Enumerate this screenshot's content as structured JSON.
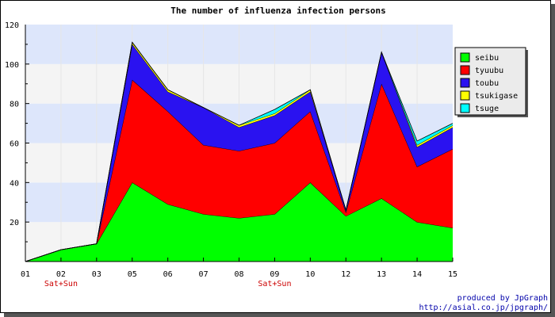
{
  "chart_data": {
    "type": "area",
    "stacked": true,
    "title": "The number of influenza infection persons",
    "categories": [
      "01",
      "02",
      "03",
      "05",
      "06",
      "07",
      "08",
      "09",
      "10",
      "12",
      "13",
      "14",
      "15"
    ],
    "weekend_notes": [
      {
        "category": "02",
        "text": "Sat+Sun"
      },
      {
        "category": "09",
        "text": "Sat+Sun"
      }
    ],
    "ylim": [
      0,
      120
    ],
    "yticks": [
      20,
      40,
      60,
      80,
      100,
      120
    ],
    "grid_bands": true,
    "legend_position": "right",
    "series": [
      {
        "name": "seibu",
        "color": "#00ff00",
        "values": [
          0,
          6,
          9,
          40,
          29,
          24,
          22,
          24,
          40,
          23,
          32,
          20,
          17
        ]
      },
      {
        "name": "tyuubu",
        "color": "#ff0000",
        "values": [
          0,
          0,
          0,
          52,
          47,
          35,
          34,
          36,
          36,
          2,
          58,
          28,
          40
        ]
      },
      {
        "name": "toubu",
        "color": "#2a12f0",
        "values": [
          0,
          0,
          0,
          18,
          10,
          19,
          12,
          14,
          10,
          1,
          16,
          10,
          11
        ]
      },
      {
        "name": "tsukigase",
        "color": "#ffff00",
        "values": [
          0,
          0,
          0,
          1,
          1,
          0,
          1,
          1,
          1,
          0,
          0,
          1,
          1
        ]
      },
      {
        "name": "tsuge",
        "color": "#00ffff",
        "values": [
          0,
          0,
          0,
          0,
          0,
          0,
          0,
          2,
          0,
          0,
          0,
          2,
          1
        ]
      }
    ]
  },
  "footer": {
    "line1": "produced by JpGraph",
    "line2": "http://asial.co.jp/jpgraph/"
  }
}
